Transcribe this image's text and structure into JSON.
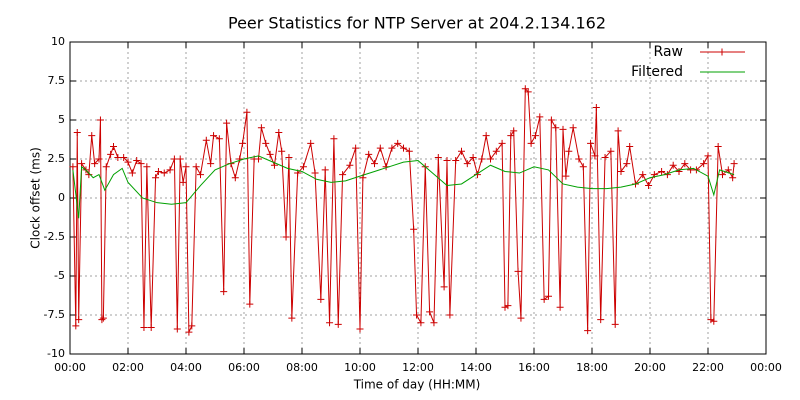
{
  "chart_data": {
    "type": "line",
    "title": "Peer Statistics for NTP Server at 204.2.134.162",
    "xlabel": "Time of day (HH:MM)",
    "ylabel": "Clock offset (ms)",
    "xlim": [
      0,
      24
    ],
    "ylim": [
      -10,
      10
    ],
    "xticks": [
      {
        "value": 0,
        "label": "00:00"
      },
      {
        "value": 2,
        "label": "02:00"
      },
      {
        "value": 4,
        "label": "04:00"
      },
      {
        "value": 6,
        "label": "06:00"
      },
      {
        "value": 8,
        "label": "08:00"
      },
      {
        "value": 10,
        "label": "10:00"
      },
      {
        "value": 12,
        "label": "12:00"
      },
      {
        "value": 14,
        "label": "14:00"
      },
      {
        "value": 16,
        "label": "16:00"
      },
      {
        "value": 18,
        "label": "18:00"
      },
      {
        "value": 20,
        "label": "20:00"
      },
      {
        "value": 22,
        "label": "22:00"
      },
      {
        "value": 24,
        "label": "00:00"
      }
    ],
    "yticks": [
      -10,
      -7.5,
      -5,
      -2.5,
      0,
      2.5,
      5,
      7.5,
      10
    ],
    "grid": true,
    "legend": "top-right",
    "series": [
      {
        "name": "Raw",
        "color": "#cc0000",
        "marker": "plus",
        "x": [
          0.1,
          0.2,
          0.25,
          0.3,
          0.4,
          0.55,
          0.65,
          0.75,
          0.85,
          1.0,
          1.05,
          1.1,
          1.15,
          1.25,
          1.4,
          1.5,
          1.65,
          1.85,
          2.0,
          2.15,
          2.3,
          2.45,
          2.55,
          2.65,
          2.8,
          2.95,
          3.05,
          3.25,
          3.45,
          3.6,
          3.7,
          3.8,
          3.9,
          4.0,
          4.1,
          4.2,
          4.35,
          4.5,
          4.7,
          4.85,
          4.95,
          5.15,
          5.3,
          5.4,
          5.55,
          5.7,
          5.85,
          5.95,
          6.1,
          6.2,
          6.35,
          6.5,
          6.6,
          6.75,
          6.9,
          7.05,
          7.2,
          7.3,
          7.45,
          7.55,
          7.65,
          7.85,
          8.05,
          8.3,
          8.45,
          8.65,
          8.8,
          8.95,
          9.1,
          9.25,
          9.4,
          9.65,
          9.85,
          10.0,
          10.1,
          10.3,
          10.5,
          10.7,
          10.9,
          11.1,
          11.3,
          11.5,
          11.7,
          11.85,
          11.95,
          12.1,
          12.25,
          12.4,
          12.55,
          12.7,
          12.9,
          13.0,
          13.1,
          13.3,
          13.5,
          13.7,
          13.9,
          14.05,
          14.2,
          14.35,
          14.5,
          14.7,
          14.9,
          15.0,
          15.1,
          15.2,
          15.3,
          15.45,
          15.55,
          15.7,
          15.8,
          15.9,
          16.05,
          16.2,
          16.35,
          16.5,
          16.6,
          16.75,
          16.9,
          17.0,
          17.1,
          17.2,
          17.35,
          17.55,
          17.7,
          17.85,
          17.95,
          18.1,
          18.15,
          18.3,
          18.45,
          18.65,
          18.8,
          18.9,
          19.0,
          19.2,
          19.3,
          19.5,
          19.75,
          19.95,
          20.15,
          20.4,
          20.6,
          20.8,
          21.0,
          21.2,
          21.4,
          21.6,
          21.85,
          22.0,
          22.1,
          22.2,
          22.35,
          22.5,
          22.7,
          22.85,
          22.9
        ],
        "values": [
          2.0,
          -8.2,
          4.2,
          -7.8,
          2.2,
          1.8,
          1.5,
          4.0,
          2.2,
          2.5,
          5.0,
          -7.8,
          -7.7,
          2.0,
          2.8,
          3.3,
          2.6,
          2.6,
          2.3,
          1.6,
          2.4,
          2.2,
          -8.3,
          2.0,
          -8.3,
          1.3,
          1.7,
          1.6,
          1.8,
          2.5,
          -8.4,
          2.5,
          1.0,
          2.0,
          -8.6,
          -8.2,
          2.0,
          1.5,
          3.7,
          2.2,
          4.0,
          3.8,
          -6.0,
          4.8,
          2.2,
          1.3,
          2.5,
          3.5,
          5.5,
          -6.8,
          2.5,
          2.5,
          4.5,
          3.5,
          2.8,
          2.1,
          4.2,
          3.0,
          -2.5,
          2.6,
          -7.7,
          1.6,
          2.0,
          3.5,
          1.6,
          -6.5,
          1.8,
          -8.0,
          3.8,
          -8.1,
          1.5,
          2.1,
          3.2,
          -8.4,
          1.3,
          2.8,
          2.2,
          3.2,
          2.0,
          3.2,
          3.5,
          3.2,
          3.0,
          -2.0,
          -7.5,
          -8.0,
          2.0,
          -7.3,
          -8.0,
          2.6,
          -5.7,
          2.4,
          -7.5,
          2.4,
          3.0,
          2.2,
          2.6,
          1.5,
          2.5,
          4.0,
          2.5,
          3.0,
          3.5,
          -7.0,
          -6.9,
          4.0,
          4.3,
          -4.7,
          -7.7,
          7.0,
          6.8,
          3.5,
          4.0,
          5.2,
          -6.5,
          -6.3,
          5.0,
          4.5,
          -7.0,
          4.4,
          1.4,
          3.0,
          4.5,
          2.5,
          2.0,
          -8.5,
          3.5,
          2.7,
          5.8,
          -7.8,
          2.6,
          3.0,
          -8.1,
          4.3,
          1.7,
          2.2,
          3.3,
          0.9,
          1.5,
          0.8,
          1.5,
          1.7,
          1.5,
          2.1,
          1.7,
          2.2,
          1.8,
          1.8,
          2.2,
          2.7,
          -7.8,
          -7.9,
          3.3,
          1.5,
          1.8,
          1.3,
          2.2
        ]
      },
      {
        "name": "Filtered",
        "color": "#00a000",
        "x": [
          0.1,
          0.3,
          0.4,
          0.6,
          0.8,
          1.0,
          1.2,
          1.5,
          1.8,
          2.0,
          2.5,
          3.0,
          3.5,
          4.0,
          4.5,
          5.0,
          5.5,
          6.0,
          6.5,
          7.0,
          7.5,
          8.0,
          8.5,
          9.0,
          9.5,
          10.0,
          10.5,
          11.0,
          11.5,
          12.0,
          12.5,
          13.0,
          13.5,
          14.0,
          14.5,
          15.0,
          15.5,
          16.0,
          16.5,
          17.0,
          17.5,
          18.0,
          18.5,
          19.0,
          19.5,
          20.0,
          20.5,
          21.0,
          21.5,
          22.0,
          22.2,
          22.4,
          22.9
        ],
        "values": [
          1.8,
          -1.3,
          2.0,
          1.7,
          1.3,
          1.5,
          0.5,
          1.5,
          1.9,
          1.0,
          0.0,
          -0.3,
          -0.4,
          -0.3,
          0.8,
          1.8,
          2.2,
          2.5,
          2.7,
          2.3,
          1.9,
          1.7,
          1.2,
          1.0,
          1.1,
          1.4,
          1.7,
          2.0,
          2.3,
          2.4,
          1.6,
          0.8,
          0.9,
          1.5,
          2.1,
          1.7,
          1.6,
          2.0,
          1.8,
          0.9,
          0.7,
          0.6,
          0.6,
          0.7,
          0.9,
          1.3,
          1.5,
          1.8,
          1.9,
          1.4,
          0.2,
          1.8,
          1.5
        ]
      }
    ]
  }
}
